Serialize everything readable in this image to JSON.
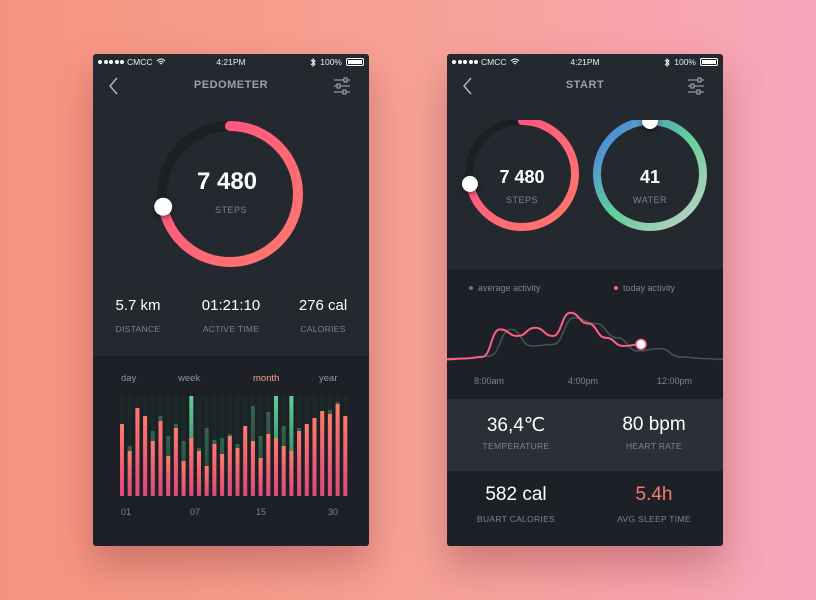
{
  "status_bar": {
    "carrier": "CMCC",
    "time": "4:21PM",
    "battery": "100%"
  },
  "left": {
    "title": "PEDOMETER",
    "steps_value": "7 480",
    "steps_label": "STEPS",
    "steps_progress": 0.72,
    "stats": [
      {
        "value": "5.7 km",
        "label": "DISTANCE"
      },
      {
        "value": "01:21:10",
        "label": "ACTIVE TIME"
      },
      {
        "value": "276 cal",
        "label": "CALORIES"
      }
    ],
    "tabs": [
      "day",
      "week",
      "month",
      "year"
    ],
    "active_tab": "month",
    "x_ticks": [
      "01",
      "07",
      "15",
      "30"
    ],
    "chart_data": {
      "type": "bar",
      "values": [
        72,
        45,
        88,
        80,
        55,
        75,
        40,
        68,
        35,
        58,
        45,
        30,
        52,
        42,
        60,
        48,
        70,
        55,
        38,
        62,
        58,
        50,
        45,
        65,
        72,
        78,
        85,
        82,
        92,
        80
      ],
      "highlight_values": [
        70,
        50,
        85,
        78,
        65,
        80,
        60,
        72,
        55,
        100,
        48,
        68,
        56,
        58,
        62,
        52,
        60,
        90,
        60,
        84,
        100,
        70,
        100,
        68,
        70,
        75,
        80,
        86,
        94,
        78
      ],
      "highlighted": [
        9,
        20,
        22
      ],
      "ylim": [
        0,
        100
      ]
    }
  },
  "right": {
    "title": "START",
    "steps_value": "7 480",
    "steps_label": "STEPS",
    "steps_progress": 0.72,
    "water_value": "41",
    "water_label": "WATER",
    "water_progress": 1.0,
    "legend": [
      {
        "label": "average activity",
        "color": "#6b727c"
      },
      {
        "label": "today activity",
        "color": "#ff5f82"
      }
    ],
    "times": [
      "8:00am",
      "4:00pm",
      "12:00pm"
    ],
    "chart_data": {
      "type": "line",
      "series": [
        {
          "name": "average activity",
          "color": "#4a5059",
          "values": [
            3,
            3,
            6,
            38,
            18,
            20,
            52,
            45,
            28,
            12,
            15,
            5,
            3,
            2
          ]
        },
        {
          "name": "today activity",
          "color": "#ff5f82",
          "values": [
            2,
            3,
            5,
            38,
            30,
            40,
            30,
            58,
            45,
            28,
            18,
            20
          ]
        }
      ],
      "ylim": [
        0,
        100
      ]
    },
    "metrics": [
      {
        "value": "36,4℃",
        "label": "TEMPERATURE",
        "color": "#ffffff"
      },
      {
        "value": "80 bpm",
        "label": "HEART RATE",
        "color": "#ffffff"
      },
      {
        "value": "582 cal",
        "label": "BUART CALORIES",
        "color": "#ffffff"
      },
      {
        "value": "5.4h",
        "label": "AVG SLEEP TIME",
        "color": "#ef7c6d"
      }
    ]
  },
  "colors": {
    "accent_pink": "#ff5f82",
    "accent_coral": "#ff7a6a",
    "accent_green": "#5ecf9a",
    "accent_blue": "#4a78e6"
  }
}
